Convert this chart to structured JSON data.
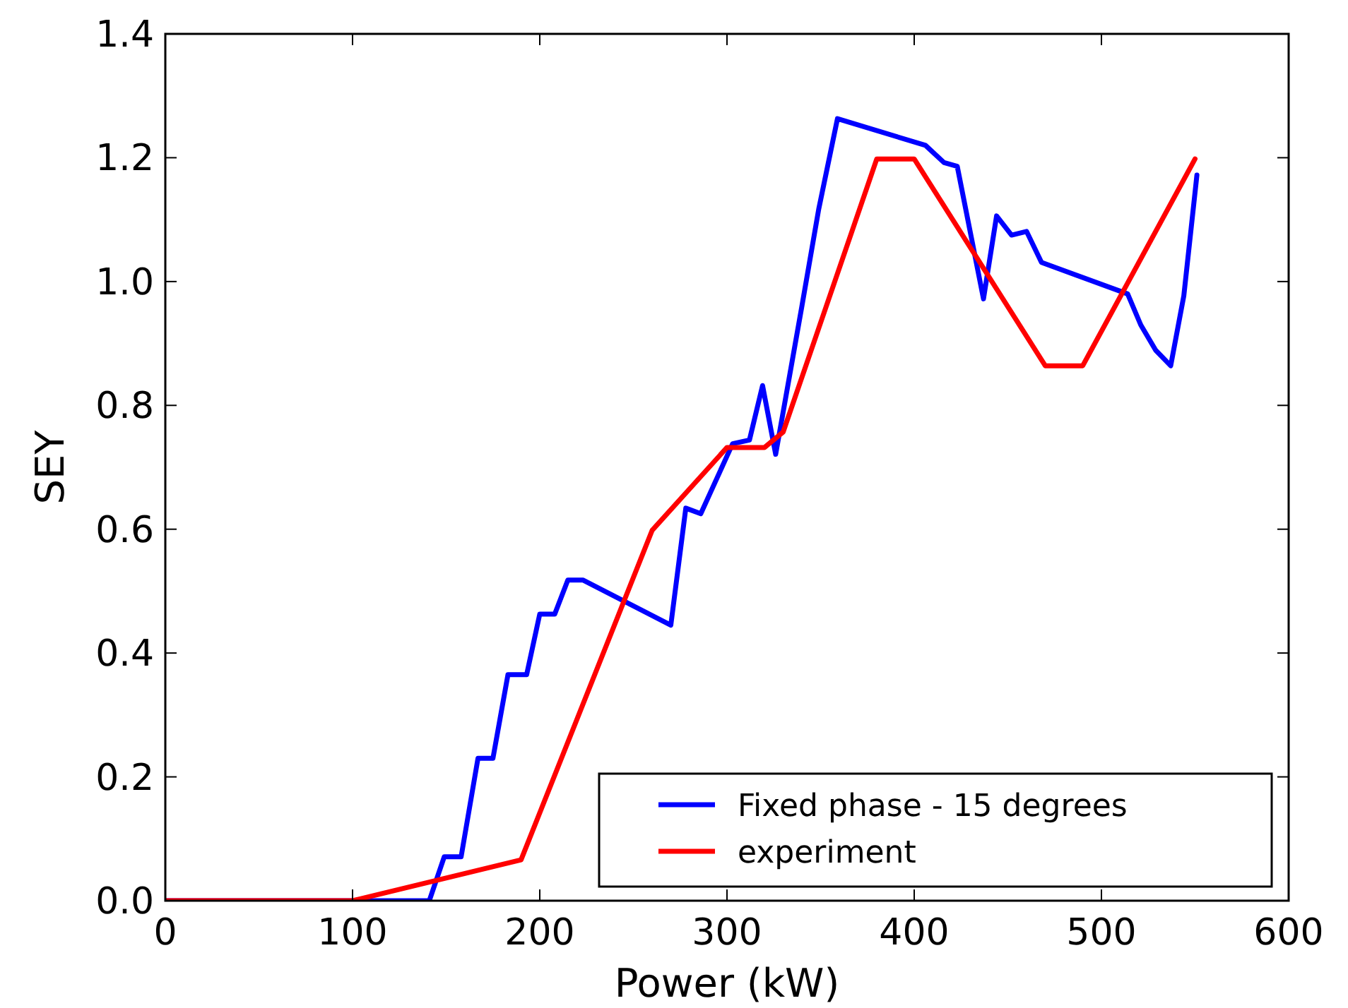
{
  "chart_data": {
    "type": "line",
    "xlabel": "Power (kW)",
    "ylabel": "SEY",
    "xlim": [
      0,
      600
    ],
    "ylim": [
      0,
      1.4
    ],
    "xticks": [
      0,
      100,
      200,
      300,
      400,
      500,
      600
    ],
    "yticks": [
      {
        "value": 0,
        "label": "0.0"
      },
      {
        "value": 0.2,
        "label": "0.2"
      },
      {
        "value": 0.4,
        "label": "0.4"
      },
      {
        "value": 0.6,
        "label": "0.6"
      },
      {
        "value": 0.8,
        "label": "0.8"
      },
      {
        "value": 1,
        "label": "1.0"
      },
      {
        "value": 1.2,
        "label": "1.2"
      },
      {
        "value": 1.4,
        "label": "1.4"
      }
    ],
    "grid": false,
    "legend": "bottom right",
    "line_style": "solid",
    "series": [
      {
        "name": "Fixed phase - 15 degrees",
        "color": "#0000ff",
        "x": [
          0,
          141,
          149,
          158,
          167,
          175,
          183,
          193,
          200,
          208,
          215,
          223,
          270,
          278,
          286,
          303,
          312,
          319,
          326,
          340,
          349,
          359,
          406,
          416,
          423,
          437,
          444,
          452,
          460,
          468,
          514,
          521,
          529,
          537,
          544,
          551
        ],
        "values": [
          0,
          0,
          0.071,
          0.071,
          0.23,
          0.23,
          0.365,
          0.365,
          0.463,
          0.463,
          0.518,
          0.518,
          0.445,
          0.634,
          0.625,
          0.738,
          0.744,
          0.832,
          0.721,
          0.96,
          1.117,
          1.263,
          1.22,
          1.192,
          1.186,
          0.972,
          1.106,
          1.075,
          1.081,
          1.031,
          0.98,
          0.93,
          0.889,
          0.864,
          0.977,
          1.172
        ]
      },
      {
        "name": "experiment",
        "color": "#ff0000",
        "x": [
          0,
          100,
          190,
          260,
          300,
          320,
          330,
          380,
          400,
          470,
          490,
          550
        ],
        "values": [
          0,
          0,
          0.066,
          0.598,
          0.732,
          0.732,
          0.757,
          1.198,
          1.198,
          0.864,
          0.864,
          1.198
        ]
      }
    ]
  }
}
